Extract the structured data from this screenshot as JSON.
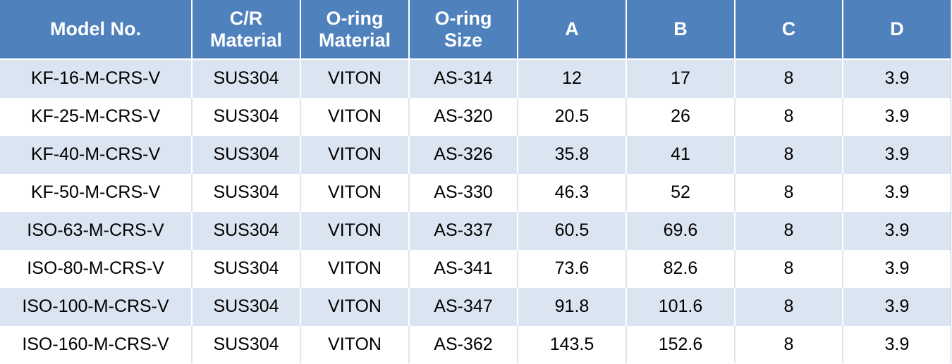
{
  "table": {
    "headers": [
      [
        "Model No."
      ],
      [
        "C/R",
        "Material"
      ],
      [
        "O-ring",
        "Material"
      ],
      [
        "O-ring",
        "Size"
      ],
      [
        "A"
      ],
      [
        "B"
      ],
      [
        "C"
      ],
      [
        "D"
      ]
    ],
    "rows": [
      [
        "KF-16-M-CRS-V",
        "SUS304",
        "VITON",
        "AS-314",
        "12",
        "17",
        "8",
        "3.9"
      ],
      [
        "KF-25-M-CRS-V",
        "SUS304",
        "VITON",
        "AS-320",
        "20.5",
        "26",
        "8",
        "3.9"
      ],
      [
        "KF-40-M-CRS-V",
        "SUS304",
        "VITON",
        "AS-326",
        "35.8",
        "41",
        "8",
        "3.9"
      ],
      [
        "KF-50-M-CRS-V",
        "SUS304",
        "VITON",
        "AS-330",
        "46.3",
        "52",
        "8",
        "3.9"
      ],
      [
        "ISO-63-M-CRS-V",
        "SUS304",
        "VITON",
        "AS-337",
        "60.5",
        "69.6",
        "8",
        "3.9"
      ],
      [
        "ISO-80-M-CRS-V",
        "SUS304",
        "VITON",
        "AS-341",
        "73.6",
        "82.6",
        "8",
        "3.9"
      ],
      [
        "ISO-100-M-CRS-V",
        "SUS304",
        "VITON",
        "AS-347",
        "91.8",
        "101.6",
        "8",
        "3.9"
      ],
      [
        "ISO-160-M-CRS-V",
        "SUS304",
        "VITON",
        "AS-362",
        "143.5",
        "152.6",
        "8",
        "3.9"
      ]
    ]
  },
  "colors": {
    "header_bg": "#4f81bd",
    "header_text": "#ffffff",
    "band_row_bg": "#dbe4f1",
    "plain_row_bg": "#ffffff"
  }
}
